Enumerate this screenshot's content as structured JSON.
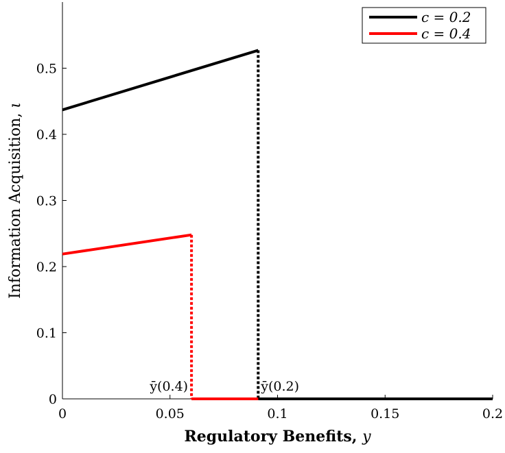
{
  "chart_data": {
    "type": "line",
    "xlabel_text": "Regulatory Benefits,",
    "xlabel_var": "y",
    "ylabel_text": "Information Acquisition,",
    "ylabel_var": "ι",
    "xlim": [
      0,
      0.2
    ],
    "ylim": [
      0,
      0.6
    ],
    "x_ticks": [
      0,
      0.05,
      0.1,
      0.15,
      0.2
    ],
    "x_tick_labels": [
      "0",
      "0.05",
      "0.1",
      "0.15",
      "0.2"
    ],
    "y_ticks": [
      0,
      0.1,
      0.2,
      0.3,
      0.4,
      0.5
    ],
    "y_tick_labels": [
      "0",
      "0.1",
      "0.2",
      "0.3",
      "0.4",
      "0.5"
    ],
    "grid": false,
    "legend_position": "top-right",
    "series": [
      {
        "name": "c = 0.2",
        "color": "#000000",
        "threshold": 0.091,
        "segments": [
          {
            "style": "solid",
            "points": [
              [
                0,
                0.437
              ],
              [
                0.091,
                0.527
              ]
            ]
          },
          {
            "style": "dotted",
            "points": [
              [
                0.091,
                0.527
              ],
              [
                0.091,
                0
              ]
            ]
          },
          {
            "style": "solid",
            "points": [
              [
                0.091,
                0
              ],
              [
                0.2,
                0
              ]
            ]
          }
        ]
      },
      {
        "name": "c = 0.4",
        "color": "#ff0000",
        "threshold": 0.06,
        "segments": [
          {
            "style": "solid",
            "points": [
              [
                0,
                0.219
              ],
              [
                0.06,
                0.248
              ]
            ]
          },
          {
            "style": "dotted",
            "points": [
              [
                0.06,
                0.248
              ],
              [
                0.06,
                0
              ]
            ]
          },
          {
            "style": "solid",
            "points": [
              [
                0.06,
                0
              ],
              [
                0.091,
                0
              ]
            ]
          }
        ]
      }
    ],
    "annotations": [
      {
        "text": "ȳ(0.4)",
        "x": 0.06,
        "y": 0,
        "anchor": "end"
      },
      {
        "text": "ȳ(0.2)",
        "x": 0.091,
        "y": 0,
        "anchor": "start"
      }
    ]
  }
}
